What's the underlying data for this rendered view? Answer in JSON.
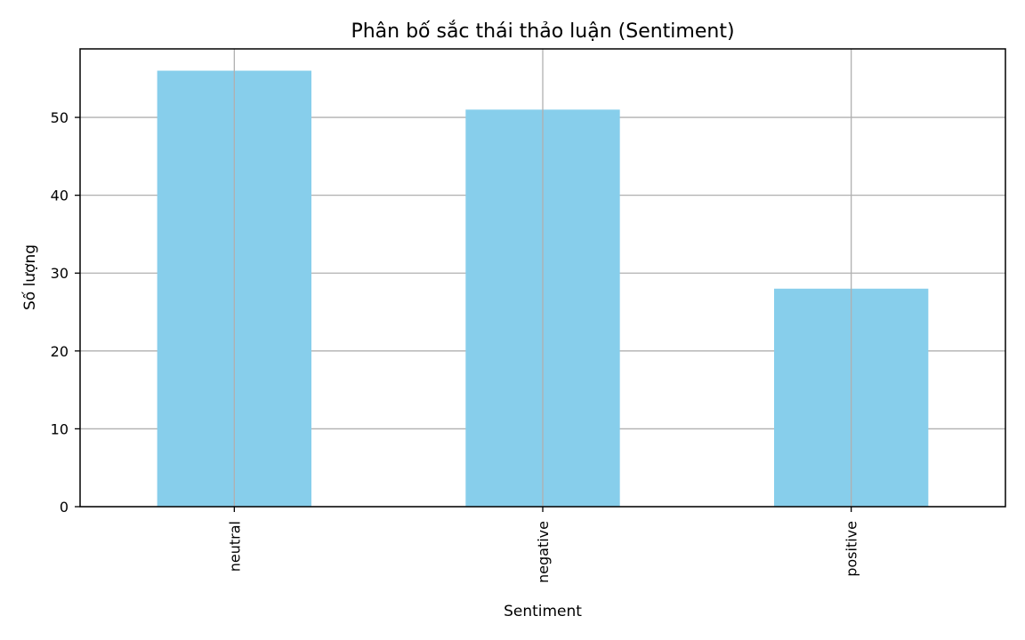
{
  "chart_data": {
    "type": "bar",
    "title": "Phân bố sắc thái thảo luận (Sentiment)",
    "xlabel": "Sentiment",
    "ylabel": "Số lượng",
    "categories": [
      "neutral",
      "negative",
      "positive"
    ],
    "values": [
      56,
      51,
      28
    ],
    "ylim": [
      0,
      58.8
    ],
    "yticks": [
      0,
      10,
      20,
      30,
      40,
      50
    ],
    "grid": true,
    "x_tick_rotation_deg": 90,
    "colors": {
      "bar": "#87CEEB",
      "grid": "#b0b0b0",
      "axes": "#000000"
    }
  }
}
